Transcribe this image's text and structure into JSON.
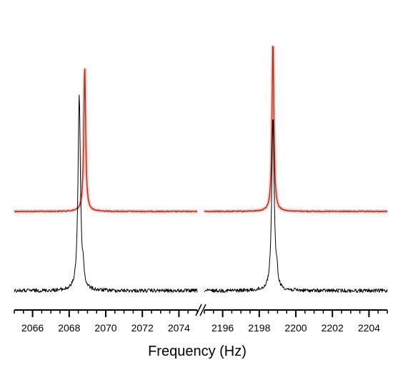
{
  "chart_data": {
    "type": "line",
    "xlabel": "Frequency (Hz)",
    "ylabel": "",
    "broken_axis": true,
    "grid": false,
    "colors": {
      "upper_trace": "#b03010",
      "upper_glow": "#f4b8bc",
      "lower_trace": "#000000",
      "axis": "#000000"
    },
    "panels": [
      {
        "xlim": [
          2065,
          2075
        ],
        "ticks": [
          2066,
          2068,
          2070,
          2072,
          2074
        ],
        "tick_labels": [
          "2066",
          "2068",
          "2070",
          "2072",
          "2074"
        ]
      },
      {
        "xlim": [
          2195,
          2205
        ],
        "ticks": [
          2196,
          2198,
          2200,
          2202,
          2204
        ],
        "tick_labels": [
          "2196",
          "2198",
          "2200",
          "2202",
          "2204"
        ]
      }
    ],
    "series": [
      {
        "role": "upper",
        "peaks": [
          {
            "panel": 0,
            "x": 2068.85,
            "height": 0.84
          },
          {
            "panel": 1,
            "x": 2198.75,
            "height": 1.0
          }
        ]
      },
      {
        "role": "lower",
        "peaks": [
          {
            "panel": 0,
            "x": 2068.55,
            "height": 0.96
          },
          {
            "panel": 1,
            "x": 2198.75,
            "height": 0.86
          }
        ]
      }
    ]
  }
}
